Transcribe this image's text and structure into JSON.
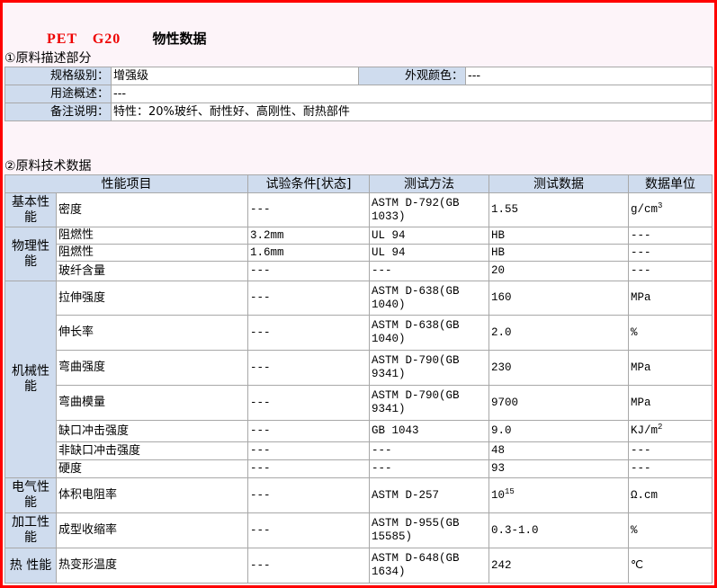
{
  "title": {
    "grade": "PET　G20",
    "heading": "物性数据"
  },
  "section1": {
    "heading": "①原料描述部分",
    "rows": [
      {
        "label": "规格级别：",
        "value": "增强级",
        "label2": "外观颜色：",
        "value2": "---"
      },
      {
        "label": "用途概述：",
        "value": "---"
      },
      {
        "label": "备注说明：",
        "value": "特性：20%玻纤、耐性好、高刚性、耐热部件"
      }
    ]
  },
  "section2": {
    "heading": "②原料技术数据",
    "columns": [
      "性能项目",
      "试验条件[状态]",
      "测试方法",
      "测试数据",
      "数据单位"
    ],
    "groups": [
      {
        "name": "基本性能",
        "rows": [
          {
            "property": "密度",
            "condition": "---",
            "method": "ASTM D-792(GB 1033)",
            "value": "1.55",
            "unit": "g/cm",
            "unit_sup": "3"
          }
        ]
      },
      {
        "name": "物理性能",
        "rows": [
          {
            "property": "阻燃性",
            "condition": "3.2mm",
            "method": "UL 94",
            "value": "HB",
            "unit": "---"
          },
          {
            "property": "阻燃性",
            "condition": "1.6mm",
            "method": "UL 94",
            "value": "HB",
            "unit": "---"
          },
          {
            "property": "玻纤含量",
            "condition": "---",
            "method": "---",
            "value": "20",
            "unit": "---"
          }
        ]
      },
      {
        "name": "机械性能",
        "rows": [
          {
            "property": "拉伸强度",
            "condition": "---",
            "method": "ASTM D-638(GB 1040)",
            "value": "160",
            "unit": "MPa"
          },
          {
            "property": "伸长率",
            "condition": "---",
            "method": "ASTM D-638(GB 1040)",
            "value": "2.0",
            "unit": "%"
          },
          {
            "property": "弯曲强度",
            "condition": "---",
            "method": "ASTM D-790(GB 9341)",
            "value": "230",
            "unit": "MPa"
          },
          {
            "property": "弯曲模量",
            "condition": "---",
            "method": "ASTM D-790(GB 9341)",
            "value": "9700",
            "unit": "MPa"
          },
          {
            "property": "缺口冲击强度",
            "condition": "---",
            "method": "GB 1043",
            "value": "9.0",
            "unit": "KJ/m",
            "unit_sup": "2"
          },
          {
            "property": "非缺口冲击强度",
            "condition": "---",
            "method": "---",
            "value": "48",
            "unit": "---"
          },
          {
            "property": "硬度",
            "condition": "---",
            "method": "---",
            "value": "93",
            "unit": "---"
          }
        ]
      },
      {
        "name": "电气性能",
        "rows": [
          {
            "property": "体积电阻率",
            "condition": "---",
            "method": "ASTM D-257",
            "value": "10",
            "value_sup": "15",
            "unit": "Ω.cm"
          }
        ]
      },
      {
        "name": "加工性能",
        "rows": [
          {
            "property": "成型收缩率",
            "condition": "---",
            "method": "ASTM D-955(GB 15585)",
            "value": "0.3-1.0",
            "unit": "%"
          }
        ]
      },
      {
        "name": "热 性能",
        "rows": [
          {
            "property": "热变形温度",
            "condition": "---",
            "method": "ASTM D-648(GB 1634)",
            "value": "242",
            "unit": "℃"
          }
        ]
      }
    ]
  }
}
